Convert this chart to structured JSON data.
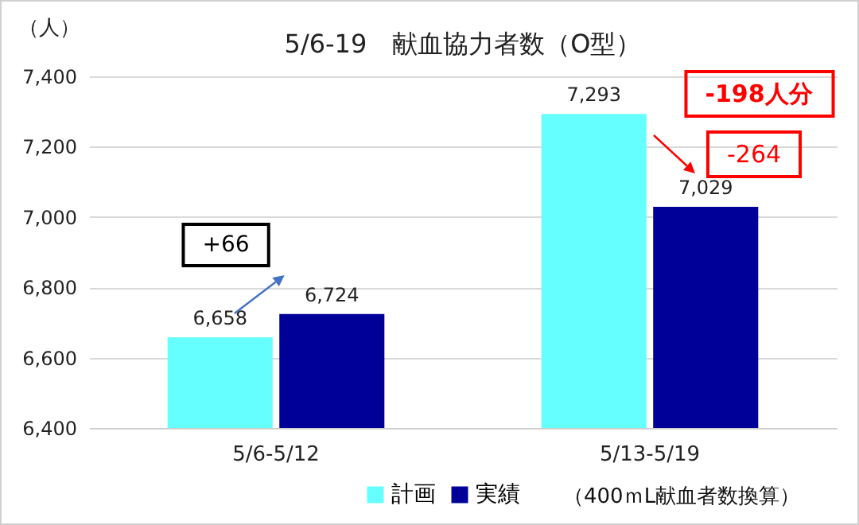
{
  "chart_data": {
    "type": "bar",
    "title": "5/6-19　献血協力者数（O型）",
    "ylabel": "（人）",
    "categories": [
      "5/6-5/12",
      "5/13-5/19"
    ],
    "series": [
      {
        "name": "計画",
        "color": "#66ffff",
        "values": [
          6658,
          7293
        ],
        "value_labels": [
          "6,658",
          "7,293"
        ]
      },
      {
        "name": "実績",
        "color": "#000099",
        "values": [
          6724,
          7029
        ],
        "value_labels": [
          "6,724",
          "7,029"
        ]
      }
    ],
    "ylim": [
      6400,
      7400
    ],
    "yticks": [
      {
        "value": 6400,
        "label": "6,400"
      },
      {
        "value": 6600,
        "label": "6,600"
      },
      {
        "value": 6800,
        "label": "6,800"
      },
      {
        "value": 7000,
        "label": "7,000"
      },
      {
        "value": 7200,
        "label": "7,200"
      },
      {
        "value": 7400,
        "label": "7,400"
      }
    ],
    "grid": "y",
    "legend": "bottom",
    "annotations": [
      "+66",
      "-264",
      "-198人分",
      "（400ｍL献血者数換算）"
    ]
  }
}
